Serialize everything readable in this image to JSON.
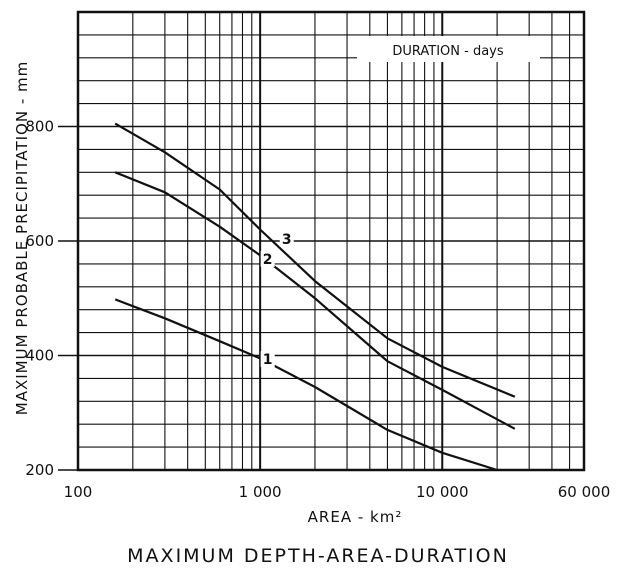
{
  "chart_data": {
    "type": "line",
    "title": "MAXIMUM   DEPTH-AREA-DURATION",
    "legend_title": "DURATION - days",
    "legend_position": "top-right",
    "xlabel": "AREA  -  km²",
    "ylabel": "MAXIMUM   PROBABLE   PRECIPITATION  -  mm",
    "x_scale": "log",
    "xlim": [
      100,
      60000
    ],
    "ylim": [
      200,
      1000
    ],
    "grid": true,
    "x_ticks": [
      {
        "value": 100,
        "label": "100"
      },
      {
        "value": 1000,
        "label": "1 000"
      },
      {
        "value": 10000,
        "label": "10 000"
      },
      {
        "value": 60000,
        "label": "60 000"
      }
    ],
    "y_ticks": [
      {
        "value": 200,
        "label": "200"
      },
      {
        "value": 400,
        "label": "400"
      },
      {
        "value": 600,
        "label": "600"
      },
      {
        "value": 800,
        "label": "800"
      }
    ],
    "series": [
      {
        "name": "1",
        "label_at": [
          1100,
          385
        ],
        "points": [
          [
            160,
            498
          ],
          [
            300,
            465
          ],
          [
            600,
            425
          ],
          [
            1000,
            395
          ],
          [
            2000,
            345
          ],
          [
            5000,
            270
          ],
          [
            10000,
            230
          ],
          [
            20000,
            200
          ]
        ]
      },
      {
        "name": "2",
        "label_at": [
          1100,
          560
        ],
        "points": [
          [
            160,
            720
          ],
          [
            300,
            685
          ],
          [
            600,
            625
          ],
          [
            1000,
            575
          ],
          [
            2000,
            500
          ],
          [
            5000,
            390
          ],
          [
            10000,
            340
          ],
          [
            25000,
            272
          ]
        ]
      },
      {
        "name": "3",
        "label_at": [
          1400,
          595
        ],
        "points": [
          [
            160,
            805
          ],
          [
            300,
            755
          ],
          [
            600,
            690
          ],
          [
            1000,
            620
          ],
          [
            2000,
            530
          ],
          [
            5000,
            430
          ],
          [
            10000,
            380
          ],
          [
            25000,
            328
          ]
        ]
      }
    ]
  }
}
